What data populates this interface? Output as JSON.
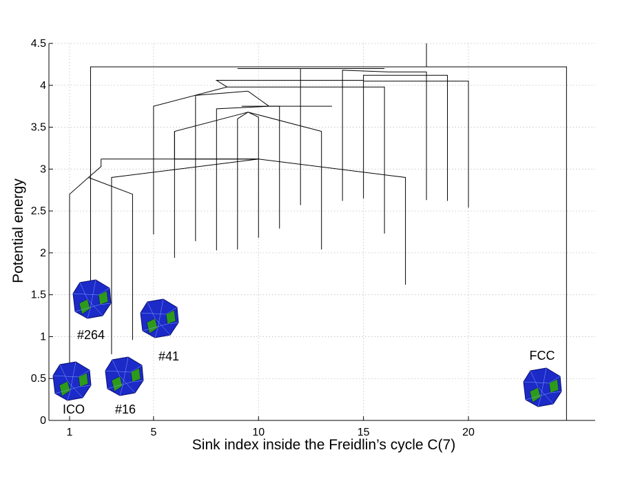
{
  "chart_data": {
    "type": "dendrogram",
    "title": "",
    "xlabel": "Sink index inside the Freidlin’s cycle C(7)",
    "ylabel": "Potential energy",
    "xlim": [
      0,
      25
    ],
    "ylim": [
      0,
      4.5
    ],
    "x_ticks": [
      {
        "value": 1,
        "label": "1"
      },
      {
        "value": 5,
        "label": "5"
      },
      {
        "value": 10,
        "label": "10"
      },
      {
        "value": 15,
        "label": "15"
      },
      {
        "value": 20,
        "label": "20"
      }
    ],
    "y_ticks": [
      {
        "value": 0,
        "label": "0"
      },
      {
        "value": 0.5,
        "label": "0.5"
      },
      {
        "value": 1,
        "label": "1"
      },
      {
        "value": 1.5,
        "label": "1.5"
      },
      {
        "value": 2,
        "label": "2"
      },
      {
        "value": 2.5,
        "label": "2.5"
      },
      {
        "value": 3,
        "label": "3"
      },
      {
        "value": 3.5,
        "label": "3.5"
      },
      {
        "value": 4,
        "label": "4"
      },
      {
        "value": 4.5,
        "label": "4.5"
      }
    ],
    "grid": true,
    "root": {
      "x": 18,
      "y": 4.22,
      "top": 4.5
    },
    "leaves": [
      {
        "index": 1,
        "energy": 0.69
      },
      {
        "index": 2,
        "energy": 1.4
      },
      {
        "index": 3,
        "energy": 0.79
      },
      {
        "index": 4,
        "energy": 0.96
      },
      {
        "index": 5,
        "energy": 2.22
      },
      {
        "index": 6,
        "energy": 1.94
      },
      {
        "index": 7,
        "energy": 2.14
      },
      {
        "index": 8,
        "energy": 2.03
      },
      {
        "index": 9,
        "energy": 2.04
      },
      {
        "index": 10,
        "energy": 2.18
      },
      {
        "index": 11,
        "energy": 2.29
      },
      {
        "index": 12,
        "energy": 2.57
      },
      {
        "index": 13,
        "energy": 2.04
      },
      {
        "index": 14,
        "energy": 2.62
      },
      {
        "index": 15,
        "energy": 2.65
      },
      {
        "index": 16,
        "energy": 2.23
      },
      {
        "index": 17,
        "energy": 1.62
      },
      {
        "index": 18,
        "energy": 2.63
      },
      {
        "index": 19,
        "energy": 2.62
      },
      {
        "index": 20,
        "energy": 2.54
      },
      {
        "index": 25,
        "energy": 0.0
      }
    ],
    "merges": [
      {
        "x1": 3,
        "y1": 2.7,
        "x2": 4,
        "y2": 2.7,
        "top": 2.9,
        "out_x": 2,
        "out_y": 2.9
      },
      {
        "x1": 1,
        "y1": 2.7,
        "x2": 3.5,
        "y2": 2.9,
        "top": 2.9,
        "out_x": 1.5,
        "out_y": 2.9
      },
      {
        "x1": 9.5,
        "y1": 3.62,
        "x2": 10.5,
        "y2": 3.62,
        "top": 3.68,
        "out_x": 9.5,
        "out_y": 3.68
      },
      {
        "x1": 6,
        "y1": 3.45,
        "x2": 13,
        "y2": 3.45,
        "top": 3.68,
        "out_x": 9.5,
        "out_y": 3.68
      },
      {
        "x1": 2,
        "y1": 2.9,
        "x2": 17,
        "y2": 2.9,
        "top": 3.12,
        "out_x": 10,
        "out_y": 3.12
      },
      {
        "x1": 4,
        "y1": 2.9,
        "x2": 10,
        "y2": 3.12,
        "top": 3.12,
        "out_x": 7.5,
        "out_y": 3.12
      }
    ],
    "structures": [
      {
        "label": "ICO",
        "leaf": 1,
        "shell": "#1c2ac8",
        "patch": "#2d9a1c"
      },
      {
        "label": "#264",
        "leaf": 2,
        "shell": "#1c2ac8",
        "patch": "#2d9a1c"
      },
      {
        "label": "#16",
        "leaf": 3,
        "shell": "#1c2ac8",
        "patch": "#2d9a1c"
      },
      {
        "label": "#41",
        "leaf": 5,
        "shell": "#1c2ac8",
        "patch": "#2d9a1c"
      },
      {
        "label": "FCC",
        "leaf": 25,
        "shell": "#1c2ac8",
        "patch": "#2d9a1c"
      }
    ],
    "colors": {
      "tree": "#000000",
      "grid": "#bdbdbd",
      "shell": "#1c2ac8",
      "patch": "#2d9a1c",
      "wire": "#7fa9ff"
    }
  }
}
